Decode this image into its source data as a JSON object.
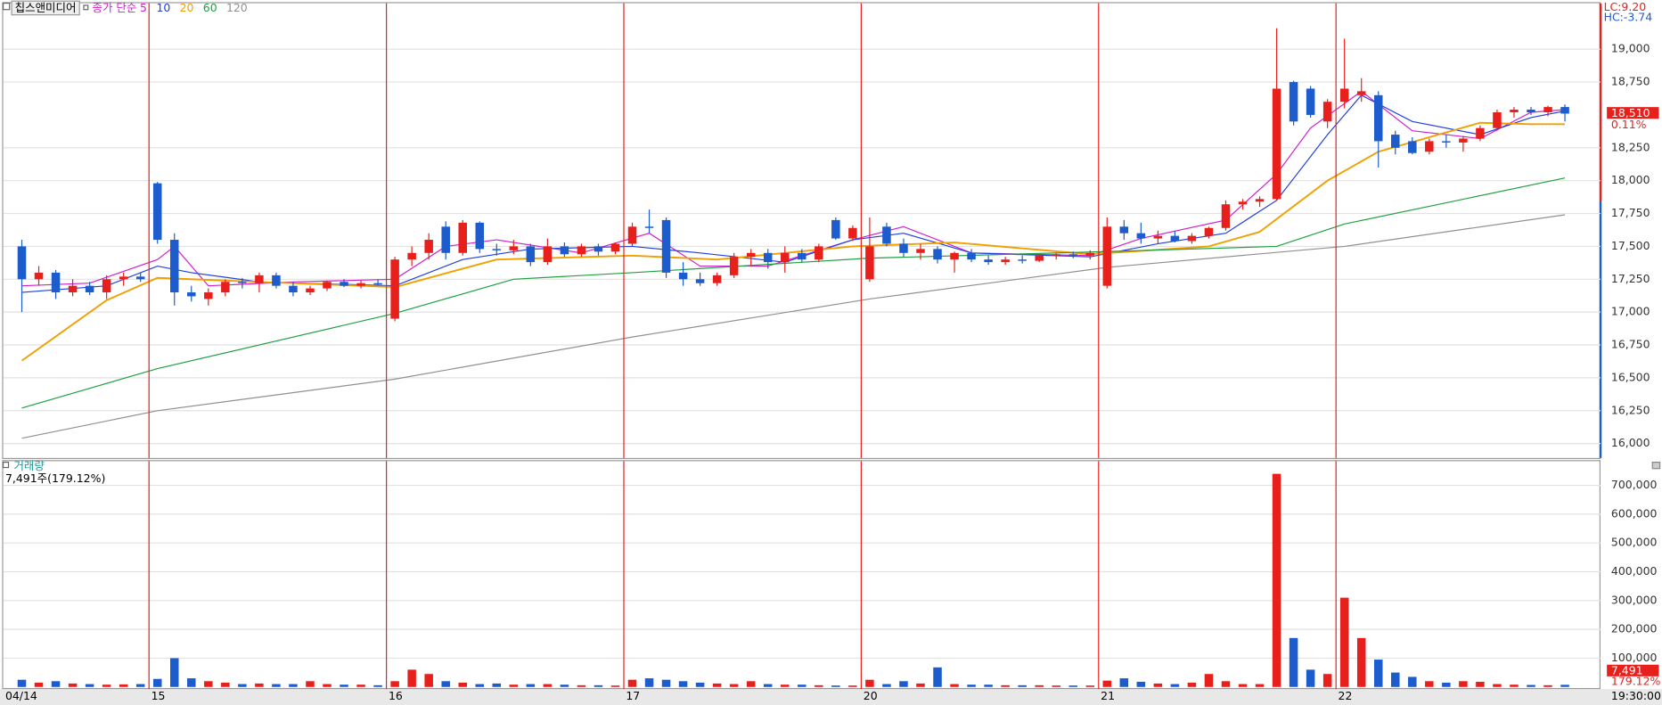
{
  "chart_data": [
    {
      "type": "candlestick",
      "title": "칩스앤미디어",
      "legend_prefix": "종가 단순",
      "up_color": "#e8201c",
      "down_color": "#1c5ccc",
      "xlim": [
        -1.1,
        93.1
      ],
      "ylim": [
        15890,
        19350
      ],
      "yticks": [
        {
          "value": 16000,
          "label": "16,000"
        },
        {
          "value": 16250,
          "label": "16,250"
        },
        {
          "value": 16500,
          "label": "16,500"
        },
        {
          "value": 16750,
          "label": "16,750"
        },
        {
          "value": 17000,
          "label": "17,000"
        },
        {
          "value": 17250,
          "label": "17,250"
        },
        {
          "value": 17500,
          "label": "17,500"
        },
        {
          "value": 17750,
          "label": "17,750"
        },
        {
          "value": 18000,
          "label": "18,000"
        },
        {
          "value": 18250,
          "label": "18,250"
        },
        {
          "value": 18750,
          "label": "18,750"
        },
        {
          "value": 19000,
          "label": "19,000"
        }
      ],
      "grid": true,
      "annotations": {
        "lc": "LC:9.20",
        "hc": "HC:-3.74"
      },
      "last_price": {
        "value": 18510,
        "label": "18,510"
      },
      "change": "0.11%",
      "ohlc": [
        [
          17500,
          17550,
          17000,
          17250
        ],
        [
          17250,
          17350,
          17200,
          17300
        ],
        [
          17300,
          17320,
          17100,
          17150
        ],
        [
          17150,
          17250,
          17120,
          17200
        ],
        [
          17200,
          17230,
          17130,
          17150
        ],
        [
          17150,
          17280,
          17100,
          17250
        ],
        [
          17250,
          17300,
          17200,
          17270
        ],
        [
          17270,
          17300,
          17230,
          17250
        ],
        [
          17980,
          17990,
          17520,
          17550
        ],
        [
          17550,
          17600,
          17050,
          17150
        ],
        [
          17150,
          17200,
          17080,
          17120
        ],
        [
          17100,
          17180,
          17050,
          17150
        ],
        [
          17150,
          17250,
          17120,
          17230
        ],
        [
          17230,
          17260,
          17180,
          17220
        ],
        [
          17220,
          17300,
          17150,
          17280
        ],
        [
          17280,
          17300,
          17180,
          17200
        ],
        [
          17200,
          17230,
          17120,
          17150
        ],
        [
          17150,
          17200,
          17130,
          17180
        ],
        [
          17180,
          17240,
          17160,
          17230
        ],
        [
          17230,
          17250,
          17190,
          17200
        ],
        [
          17200,
          17240,
          17180,
          17220
        ],
        [
          17220,
          17250,
          17200,
          17210
        ],
        [
          16950,
          17420,
          16930,
          17400
        ],
        [
          17400,
          17500,
          17350,
          17450
        ],
        [
          17450,
          17600,
          17400,
          17550
        ],
        [
          17650,
          17690,
          17400,
          17450
        ],
        [
          17450,
          17700,
          17430,
          17680
        ],
        [
          17680,
          17690,
          17450,
          17480
        ],
        [
          17480,
          17520,
          17430,
          17470
        ],
        [
          17470,
          17550,
          17440,
          17500
        ],
        [
          17500,
          17520,
          17350,
          17380
        ],
        [
          17380,
          17560,
          17360,
          17500
        ],
        [
          17500,
          17530,
          17420,
          17440
        ],
        [
          17440,
          17520,
          17420,
          17500
        ],
        [
          17500,
          17520,
          17430,
          17460
        ],
        [
          17460,
          17530,
          17440,
          17520
        ],
        [
          17520,
          17680,
          17500,
          17650
        ],
        [
          17650,
          17780,
          17600,
          17640
        ],
        [
          17700,
          17720,
          17260,
          17300
        ],
        [
          17300,
          17380,
          17200,
          17250
        ],
        [
          17250,
          17300,
          17200,
          17220
        ],
        [
          17220,
          17300,
          17200,
          17280
        ],
        [
          17280,
          17450,
          17260,
          17420
        ],
        [
          17420,
          17480,
          17350,
          17450
        ],
        [
          17450,
          17480,
          17330,
          17380
        ],
        [
          17380,
          17500,
          17300,
          17450
        ],
        [
          17450,
          17480,
          17380,
          17400
        ],
        [
          17400,
          17520,
          17380,
          17500
        ],
        [
          17700,
          17720,
          17550,
          17560
        ],
        [
          17560,
          17660,
          17540,
          17640
        ],
        [
          17250,
          17720,
          17230,
          17500
        ],
        [
          17650,
          17680,
          17500,
          17520
        ],
        [
          17520,
          17560,
          17420,
          17450
        ],
        [
          17450,
          17520,
          17400,
          17480
        ],
        [
          17480,
          17500,
          17370,
          17400
        ],
        [
          17400,
          17460,
          17300,
          17450
        ],
        [
          17450,
          17480,
          17380,
          17400
        ],
        [
          17400,
          17430,
          17360,
          17380
        ],
        [
          17380,
          17420,
          17360,
          17400
        ],
        [
          17400,
          17430,
          17370,
          17390
        ],
        [
          17390,
          17440,
          17380,
          17430
        ],
        [
          17430,
          17450,
          17400,
          17440
        ],
        [
          17440,
          17460,
          17410,
          17430
        ],
        [
          17430,
          17470,
          17400,
          17450
        ],
        [
          17200,
          17720,
          17180,
          17650
        ],
        [
          17650,
          17700,
          17550,
          17600
        ],
        [
          17600,
          17680,
          17520,
          17560
        ],
        [
          17560,
          17620,
          17520,
          17580
        ],
        [
          17580,
          17620,
          17530,
          17540
        ],
        [
          17540,
          17600,
          17520,
          17580
        ],
        [
          17580,
          17650,
          17560,
          17640
        ],
        [
          17640,
          17850,
          17620,
          17820
        ],
        [
          17820,
          17860,
          17780,
          17840
        ],
        [
          17840,
          17880,
          17800,
          17860
        ],
        [
          17860,
          19160,
          17850,
          18700
        ],
        [
          18750,
          18760,
          18420,
          18450
        ],
        [
          18700,
          18720,
          18480,
          18500
        ],
        [
          18450,
          18620,
          18400,
          18600
        ],
        [
          18600,
          19080,
          18550,
          18700
        ],
        [
          18650,
          18780,
          18600,
          18680
        ],
        [
          18650,
          18680,
          18100,
          18300
        ],
        [
          18350,
          18380,
          18200,
          18250
        ],
        [
          18300,
          18330,
          18200,
          18210
        ],
        [
          18220,
          18320,
          18200,
          18300
        ],
        [
          18300,
          18350,
          18250,
          18290
        ],
        [
          18290,
          18340,
          18220,
          18320
        ],
        [
          18320,
          18420,
          18300,
          18400
        ],
        [
          18400,
          18540,
          18380,
          18520
        ],
        [
          18520,
          18560,
          18480,
          18540
        ],
        [
          18540,
          18560,
          18500,
          18520
        ],
        [
          18520,
          18570,
          18490,
          18560
        ],
        [
          18560,
          18580,
          18450,
          18510
        ]
      ],
      "series": [
        {
          "name": "5",
          "color": "#d020d0",
          "x": [
            0,
            4,
            8,
            9,
            11,
            16,
            22,
            25,
            28,
            33,
            37,
            40,
            44,
            49,
            52,
            56,
            63,
            66,
            71,
            74,
            76,
            79,
            82,
            86,
            89,
            91
          ],
          "values": [
            17200,
            17220,
            17400,
            17500,
            17200,
            17230,
            17250,
            17500,
            17550,
            17450,
            17600,
            17350,
            17350,
            17550,
            17650,
            17450,
            17430,
            17560,
            17700,
            18050,
            18400,
            18680,
            18380,
            18320,
            18520,
            18540
          ]
        },
        {
          "name": "10",
          "color": "#2040e0",
          "x": [
            0,
            5,
            8,
            10,
            14,
            22,
            26,
            30,
            36,
            40,
            45,
            49,
            52,
            56,
            63,
            67,
            71,
            74,
            77,
            79,
            82,
            86,
            89,
            91
          ],
          "values": [
            17150,
            17200,
            17350,
            17300,
            17230,
            17200,
            17400,
            17480,
            17500,
            17450,
            17380,
            17550,
            17600,
            17450,
            17420,
            17520,
            17600,
            17850,
            18350,
            18650,
            18450,
            18350,
            18480,
            18530
          ]
        },
        {
          "name": "20",
          "color": "#f0a000",
          "x": [
            0,
            5,
            8,
            14,
            22,
            28,
            36,
            41,
            49,
            55,
            63,
            70,
            73,
            77,
            80,
            86,
            89,
            91
          ],
          "values": [
            16630,
            17090,
            17260,
            17230,
            17190,
            17400,
            17430,
            17400,
            17500,
            17530,
            17440,
            17500,
            17610,
            18000,
            18220,
            18440,
            18430,
            18430
          ]
        },
        {
          "name": "60",
          "color": "#20a040",
          "x": [
            0,
            8,
            22,
            29,
            36,
            50,
            64,
            74,
            78,
            91
          ],
          "values": [
            16270,
            16570,
            16990,
            17250,
            17300,
            17410,
            17460,
            17500,
            17670,
            18020
          ]
        },
        {
          "name": "120",
          "color": "#909090",
          "x": [
            0,
            8,
            22,
            36,
            50,
            64,
            78,
            91
          ],
          "values": [
            16040,
            16250,
            16490,
            16810,
            17100,
            17340,
            17500,
            17740
          ]
        }
      ]
    },
    {
      "type": "bar",
      "title": "거래량",
      "summary": "7,491주(179.12%)",
      "ylim": [
        0,
        784000
      ],
      "yticks": [
        {
          "value": 100000,
          "label": "100,000"
        },
        {
          "value": 200000,
          "label": "200,000"
        },
        {
          "value": 300000,
          "label": "300,000"
        },
        {
          "value": 400000,
          "label": "400,000"
        },
        {
          "value": 500000,
          "label": "500,000"
        },
        {
          "value": 600000,
          "label": "600,000"
        },
        {
          "value": 700000,
          "label": "700,000"
        }
      ],
      "xticks": [
        {
          "value": -1.1,
          "label": "04/14"
        },
        {
          "value": 7.5,
          "label": "15"
        },
        {
          "value": 21.5,
          "label": "16"
        },
        {
          "value": 35.5,
          "label": "17"
        },
        {
          "value": 49.5,
          "label": "20"
        },
        {
          "value": 63.5,
          "label": "21"
        },
        {
          "value": 77.5,
          "label": "22"
        }
      ],
      "time_label": "19:30:00",
      "last_value": {
        "value": 7491,
        "label": "7,491"
      },
      "last_ratio": "179.12%",
      "values": [
        25000,
        15000,
        20000,
        12000,
        10000,
        8000,
        9000,
        10000,
        28000,
        100000,
        30000,
        20000,
        15000,
        10000,
        12000,
        10000,
        10000,
        20000,
        10000,
        8000,
        8000,
        6000,
        20000,
        60000,
        45000,
        20000,
        15000,
        10000,
        12000,
        8000,
        10000,
        10000,
        8000,
        6000,
        6000,
        5000,
        25000,
        30000,
        25000,
        20000,
        15000,
        12000,
        10000,
        20000,
        10000,
        8000,
        8000,
        6000,
        5000,
        5000,
        25000,
        10000,
        20000,
        12000,
        68000,
        10000,
        8000,
        8000,
        6000,
        6000,
        6000,
        5000,
        5000,
        5000,
        22000,
        30000,
        18000,
        12000,
        10000,
        15000,
        45000,
        20000,
        10000,
        10000,
        740000,
        170000,
        60000,
        45000,
        310000,
        170000,
        95000,
        50000,
        35000,
        20000,
        15000,
        20000,
        18000,
        10000,
        8000,
        7000,
        6000,
        7491
      ]
    }
  ]
}
